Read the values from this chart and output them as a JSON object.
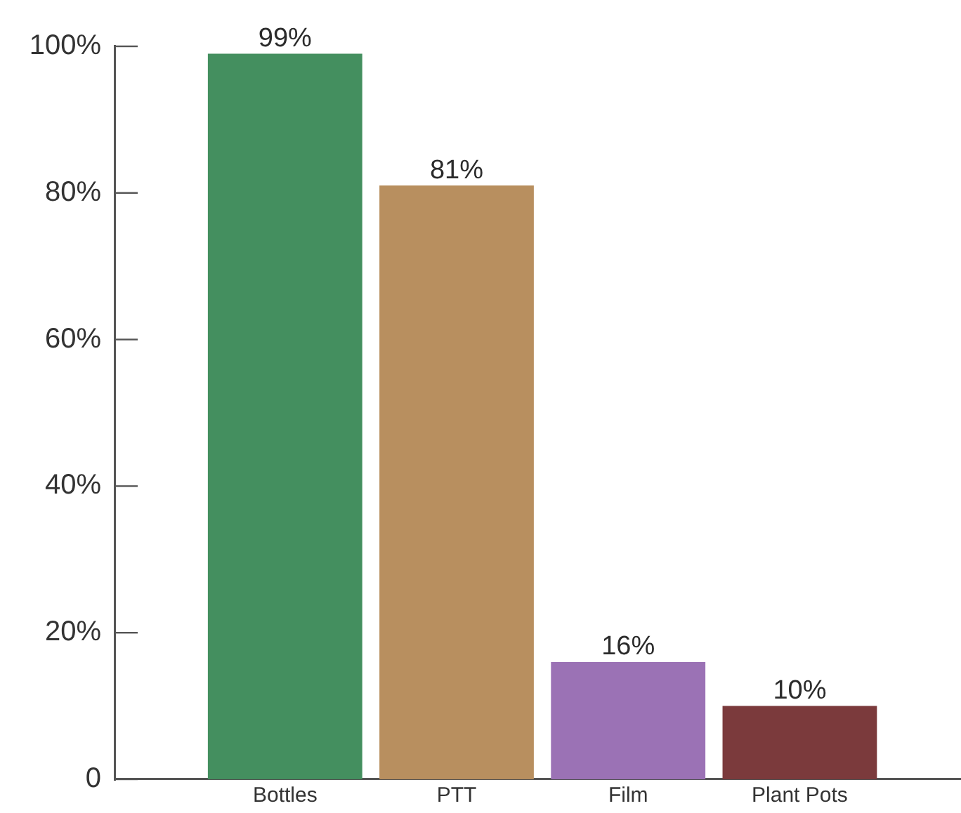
{
  "chart_data": {
    "type": "bar",
    "categories": [
      "Bottles",
      "PTT",
      "Film",
      "Plant Pots"
    ],
    "values": [
      99,
      81,
      16,
      10
    ],
    "colors": [
      "#448f5f",
      "#b88f5f",
      "#9b72b5",
      "#7b3a3c"
    ],
    "value_labels": [
      "99%",
      "81%",
      "16%",
      "10%"
    ],
    "ylim": [
      0,
      100
    ],
    "yticks": [
      {
        "value": 0,
        "label": "0"
      },
      {
        "value": 20,
        "label": "20%"
      },
      {
        "value": 40,
        "label": "40%"
      },
      {
        "value": 60,
        "label": "60%"
      },
      {
        "value": 80,
        "label": "80%"
      },
      {
        "value": 100,
        "label": "100%"
      }
    ]
  }
}
